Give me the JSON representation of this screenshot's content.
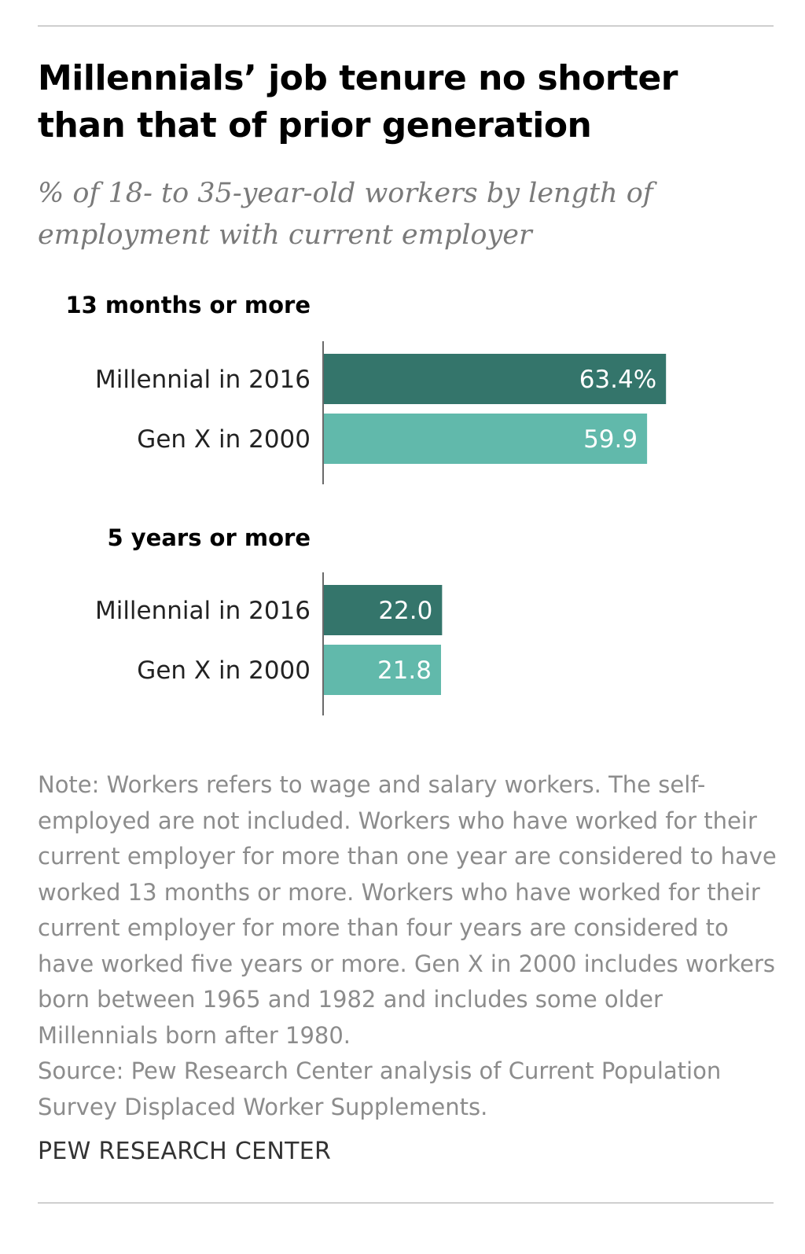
{
  "title": "Millennials’ job tenure no shorter than that of prior generation",
  "subtitle": "% of 18- to 35-year-old workers by length of employment with current employer",
  "chart_data": {
    "type": "bar",
    "orientation": "horizontal",
    "xlim": [
      0,
      100
    ],
    "unit": "%",
    "colors": {
      "Millennial in 2016": "#34756b",
      "Gen X in 2000": "#61b9ab"
    },
    "groups": [
      {
        "label": "13 months or more",
        "bars": [
          {
            "category": "Millennial in 2016",
            "value": 63.4,
            "value_label": "63.4%"
          },
          {
            "category": "Gen X in 2000",
            "value": 59.9,
            "value_label": "59.9"
          }
        ]
      },
      {
        "label": "5 years or more",
        "bars": [
          {
            "category": "Millennial in 2016",
            "value": 22.0,
            "value_label": "22.0"
          },
          {
            "category": "Gen X in 2000",
            "value": 21.8,
            "value_label": "21.8"
          }
        ]
      }
    ]
  },
  "note": "Note: Workers refers to wage and salary workers. The self-employed are not included. Workers who have worked for their current employer for more than one year are considered to have worked 13 months or more. Workers who have worked for their current employer for more than four years are considered to have worked five years or more. Gen X in 2000 includes workers born between 1965 and 1982 and includes some older Millennials born after 1980.",
  "source": "Source: Pew Research Center analysis of Current Population Survey Displaced Worker Supplements.",
  "brand": "PEW RESEARCH CENTER"
}
